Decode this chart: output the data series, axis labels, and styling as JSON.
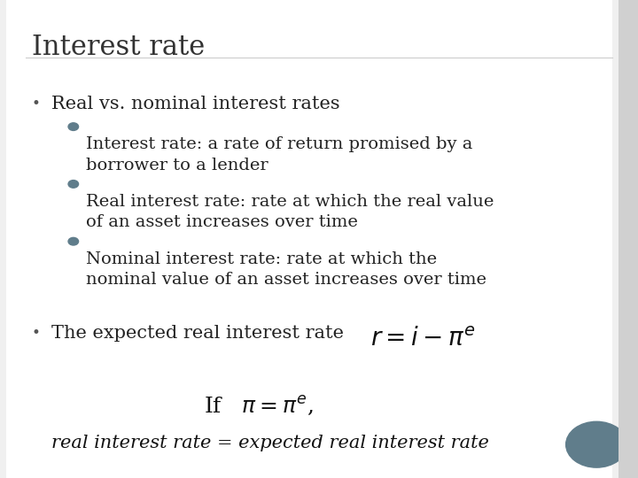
{
  "title": "Interest rate",
  "background_color": "#f0f0f0",
  "slide_bg": "#ffffff",
  "title_color": "#333333",
  "bullet1": "Real vs. nominal interest rates",
  "sub_bullets": [
    "Interest rate: a rate of return promised by a\nborrower to a lender",
    "Real interest rate: rate at which the real value\nof an asset increases over time",
    "Nominal interest rate: rate at which the\nnominal value of an asset increases over time"
  ],
  "bullet2": "The expected real interest rate",
  "formula1": "$r = i - \\pi^e$",
  "if_line": "If   $\\pi = \\pi^e$,",
  "conclusion": "real interest rate = expected real interest rate",
  "dot_color": "#607d8b",
  "sub_dot_color": "#607d8b",
  "title_fontsize": 22,
  "bullet_fontsize": 15,
  "sub_fontsize": 14,
  "formula_fontsize": 18
}
